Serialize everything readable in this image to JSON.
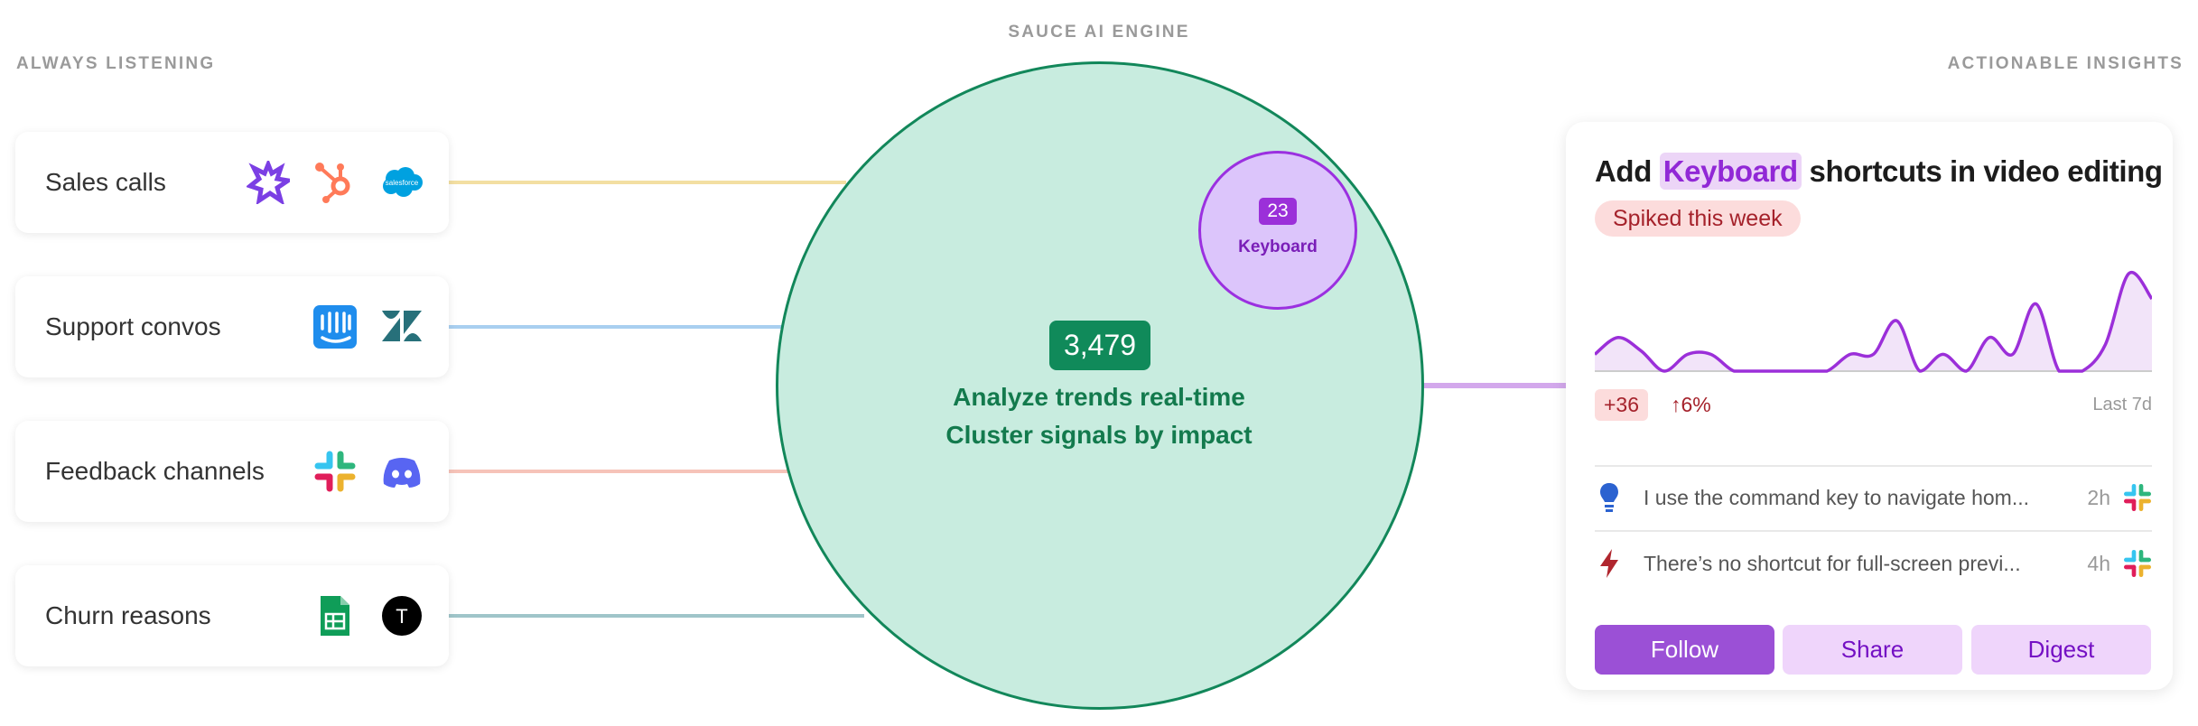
{
  "headings": {
    "left": "ALWAYS LISTENING",
    "center": "SAUCE AI ENGINE",
    "right": "ACTIONABLE INSIGHTS"
  },
  "sources": [
    {
      "label": "Sales calls",
      "icons": [
        "gong-icon",
        "hubspot-icon",
        "salesforce-icon"
      ],
      "line_color": "#f3dfa2"
    },
    {
      "label": "Support convos",
      "icons": [
        "intercom-icon",
        "zendesk-icon"
      ],
      "line_color": "#a9cff0"
    },
    {
      "label": "Feedback channels",
      "icons": [
        "slack-icon",
        "discord-icon"
      ],
      "line_color": "#f6c3b9"
    },
    {
      "label": "Churn reasons",
      "icons": [
        "google-sheets-icon",
        "typeform-icon"
      ],
      "line_color": "#9fc5c9"
    }
  ],
  "salesforce_logo_text": "salesforce",
  "engine": {
    "count": "3,479",
    "line1": "Analyze trends real-time",
    "line2": "Cluster signals by impact",
    "cluster": {
      "count": "23",
      "label": "Keyboard"
    },
    "colors": {
      "fill": "#c8ecdf",
      "stroke": "#12875a",
      "cluster_fill": "#dcc5fb",
      "cluster_stroke": "#9b30e0"
    }
  },
  "insight": {
    "title_prefix": "Add",
    "title_highlight": "Keyboard",
    "title_suffix": "shortcuts in video editing",
    "status": "Spiked this week",
    "delta": "+36",
    "pct": "↑6%",
    "range": "Last 7d",
    "trend": [
      1,
      2,
      1.2,
      0,
      1,
      1,
      0,
      0,
      0,
      0,
      0,
      1,
      1,
      3,
      0,
      1,
      0,
      2,
      1,
      4,
      0,
      0,
      1.6,
      5.8,
      4.3
    ],
    "feedback": [
      {
        "icon": "lightbulb-icon",
        "text": "I use the command key to navigate hom...",
        "time": "2h",
        "source": "slack-icon"
      },
      {
        "icon": "lightning-icon",
        "text": "There’s no shortcut for full-screen previ...",
        "time": "4h",
        "source": "slack-icon"
      }
    ],
    "buttons": {
      "follow": "Follow",
      "share": "Share",
      "digest": "Digest"
    },
    "accent": "#9b50d6"
  }
}
